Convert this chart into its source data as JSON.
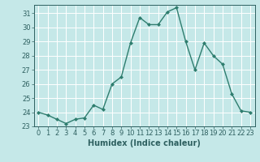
{
  "x": [
    0,
    1,
    2,
    3,
    4,
    5,
    6,
    7,
    8,
    9,
    10,
    11,
    12,
    13,
    14,
    15,
    16,
    17,
    18,
    19,
    20,
    21,
    22,
    23
  ],
  "y": [
    24.0,
    23.8,
    23.5,
    23.2,
    23.5,
    23.6,
    24.5,
    24.2,
    26.0,
    26.5,
    28.9,
    30.7,
    30.2,
    30.2,
    31.1,
    31.4,
    29.0,
    27.0,
    28.9,
    28.0,
    27.4,
    25.3,
    24.1,
    24.0
  ],
  "line_color": "#2e7d6e",
  "marker": "D",
  "marker_size": 2,
  "bg_color": "#c5e8e8",
  "grid_color": "#ffffff",
  "xlabel": "Humidex (Indice chaleur)",
  "ylabel": "",
  "title": "",
  "xlim": [
    -0.5,
    23.5
  ],
  "ylim": [
    23,
    31.6
  ],
  "yticks": [
    23,
    24,
    25,
    26,
    27,
    28,
    29,
    30,
    31
  ],
  "xticks": [
    0,
    1,
    2,
    3,
    4,
    5,
    6,
    7,
    8,
    9,
    10,
    11,
    12,
    13,
    14,
    15,
    16,
    17,
    18,
    19,
    20,
    21,
    22,
    23
  ],
  "xlabel_fontsize": 7,
  "tick_fontsize": 6,
  "line_width": 1.0,
  "tick_color": "#2e6060"
}
